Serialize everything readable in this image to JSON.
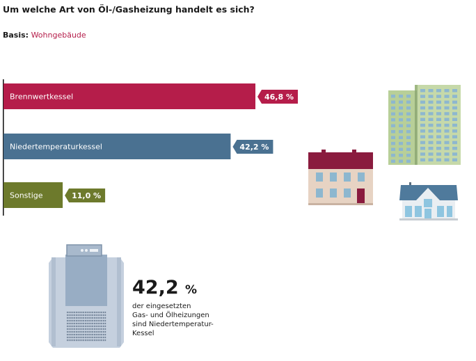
{
  "header": {
    "title": "Um welche Art von Öl-/Gasheizung handelt es sich?",
    "basis_label": "Basis:",
    "basis_value": "Wohngebäude"
  },
  "chart_data": {
    "type": "bar",
    "orientation": "horizontal",
    "categories": [
      "Brennwertkessel",
      "Niedertemperaturkessel",
      "Sonstige"
    ],
    "values": [
      46.8,
      42.2,
      11.0
    ],
    "value_labels": [
      "46,8 %",
      "42,2 %",
      "11,0 %"
    ],
    "colors": [
      "#b51d4a",
      "#4a7191",
      "#6d7a2c"
    ],
    "xlim": [
      0,
      46.8
    ],
    "grid": false,
    "legend": "none"
  },
  "highlight": {
    "value": "42,2",
    "unit": "%",
    "caption_lines": [
      "der eingesetzten",
      "Gas- und Ölheizungen",
      "sind Niedertemperatur-",
      "Kessel"
    ]
  },
  "illustrations": {
    "buildings": [
      "high-rise-building-icon",
      "apartment-building-icon",
      "house-icon"
    ],
    "boiler": "boiler-icon"
  }
}
